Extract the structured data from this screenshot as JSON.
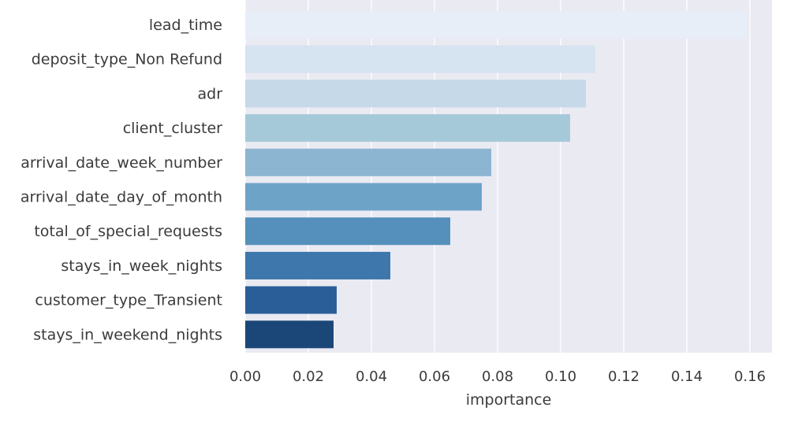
{
  "chart_data": {
    "type": "bar",
    "orientation": "horizontal",
    "categories": [
      "lead_time",
      "deposit_type_Non Refund",
      "adr",
      "client_cluster",
      "arrival_date_week_number",
      "arrival_date_day_of_month",
      "total_of_special_requests",
      "stays_in_week_nights",
      "customer_type_Transient",
      "stays_in_weekend_nights"
    ],
    "values": [
      0.159,
      0.111,
      0.108,
      0.103,
      0.078,
      0.075,
      0.065,
      0.046,
      0.029,
      0.028
    ],
    "colors": [
      "#e8eef8",
      "#d6e3f0",
      "#c5d9e9",
      "#a6c9d9",
      "#8cb5d1",
      "#6ea3c8",
      "#5490bb",
      "#3d77ab",
      "#2a5e98",
      "#1b4778"
    ],
    "title": "",
    "xlabel": "importance",
    "ylabel": "",
    "xlim": [
      0,
      0.167
    ],
    "xticks": [
      0.0,
      0.02,
      0.04,
      0.06,
      0.08,
      0.1,
      0.12,
      0.14,
      0.16
    ],
    "xtick_labels": [
      "0.00",
      "0.02",
      "0.04",
      "0.06",
      "0.08",
      "0.10",
      "0.12",
      "0.14",
      "0.16"
    ],
    "grid": true,
    "background": "#eaeaf2",
    "grid_color": "#ffffff"
  }
}
